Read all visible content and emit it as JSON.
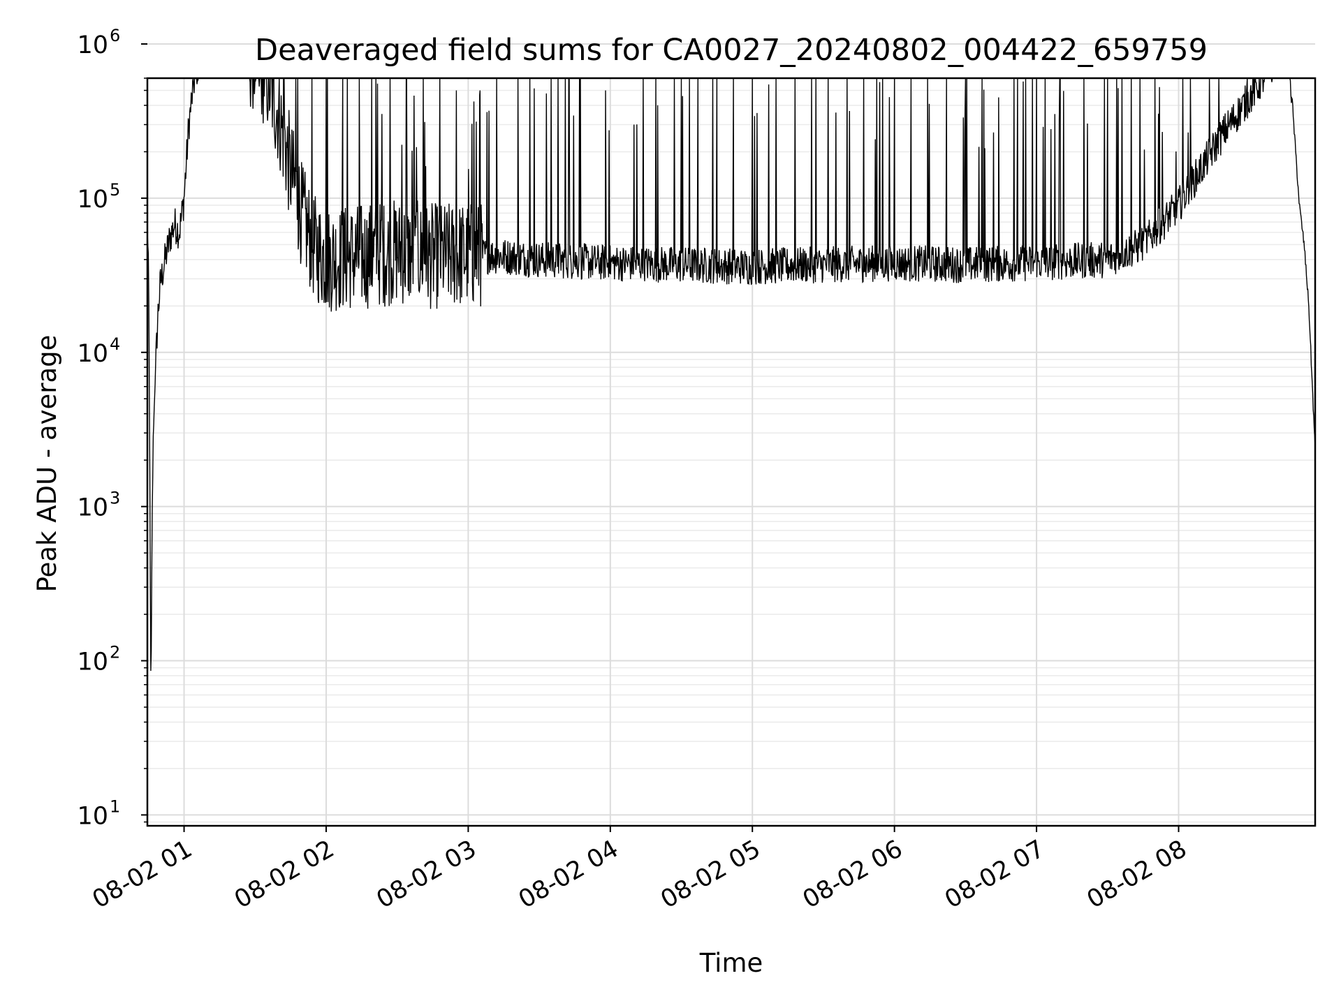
{
  "chart_data": {
    "type": "line",
    "title": "Deaveraged field sums for CA0027_20240802_004422_659759",
    "xlabel": "Time",
    "ylabel": "Peak ADU - average",
    "y_scale": "log",
    "ylim": [
      8.5,
      600000
    ],
    "xlim": [
      "2024-08-02 00:44:30",
      "2024-08-02 08:57:40"
    ],
    "grid": true,
    "legend": "none",
    "x_ticks": [
      {
        "value": "2024-08-02 01:00",
        "label": "08-02 01"
      },
      {
        "value": "2024-08-02 02:00",
        "label": "08-02 02"
      },
      {
        "value": "2024-08-02 03:00",
        "label": "08-02 03"
      },
      {
        "value": "2024-08-02 04:00",
        "label": "08-02 04"
      },
      {
        "value": "2024-08-02 05:00",
        "label": "08-02 05"
      },
      {
        "value": "2024-08-02 06:00",
        "label": "08-02 06"
      },
      {
        "value": "2024-08-02 07:00",
        "label": "08-02 07"
      },
      {
        "value": "2024-08-02 08:00",
        "label": "08-02 08"
      }
    ],
    "y_ticks": [
      {
        "value": 10,
        "base": "10",
        "exp": "1"
      },
      {
        "value": 100,
        "base": "10",
        "exp": "2"
      },
      {
        "value": 1000,
        "base": "10",
        "exp": "3"
      },
      {
        "value": 10000,
        "base": "10",
        "exp": "4"
      },
      {
        "value": 100000,
        "base": "10",
        "exp": "5"
      },
      {
        "value": 1000000,
        "base": "10",
        "exp": "6"
      }
    ],
    "series": [
      {
        "color": "#000000",
        "points": [
          [
            "2024-08-02 00:44:30",
            60000
          ],
          [
            "2024-08-02 00:45:00",
            40000
          ],
          [
            "2024-08-02 00:45:30",
            2000
          ],
          [
            "2024-08-02 00:46:00",
            52
          ],
          [
            "2024-08-02 00:46:30",
            800
          ],
          [
            "2024-08-02 00:47:00",
            3000
          ],
          [
            "2024-08-02 00:48:00",
            8000
          ],
          [
            "2024-08-02 00:49:00",
            18000
          ],
          [
            "2024-08-02 00:50:00",
            28000
          ],
          [
            "2024-08-02 00:52:00",
            40000
          ],
          [
            "2024-08-02 00:54:00",
            55000
          ],
          [
            "2024-08-02 00:56:00",
            68000
          ],
          [
            "2024-08-02 00:58:00",
            60000
          ],
          [
            "2024-08-02 01:00:00",
            100000
          ],
          [
            "2024-08-02 01:02:00",
            300000
          ],
          [
            "2024-08-02 01:04:00",
            550000
          ],
          [
            "2024-08-02 01:06:00",
            750000
          ],
          [
            "2024-08-02 01:10:00",
            850000
          ],
          [
            "2024-08-02 01:15:00",
            800000
          ],
          [
            "2024-08-02 01:20:00",
            900000
          ],
          [
            "2024-08-02 01:25:00",
            850000
          ],
          [
            "2024-08-02 01:30:00",
            800000
          ],
          [
            "2024-08-02 01:35:00",
            600000
          ],
          [
            "2024-08-02 01:40:00",
            350000
          ],
          [
            "2024-08-02 01:45:00",
            150000
          ],
          [
            "2024-08-02 01:50:00",
            75000
          ],
          [
            "2024-08-02 01:55:00",
            48000
          ],
          [
            "2024-08-02 02:00:00",
            40000
          ],
          [
            "2024-08-02 02:15:00",
            42000
          ],
          [
            "2024-08-02 02:30:00",
            45000
          ],
          [
            "2024-08-02 02:45:00",
            42000
          ],
          [
            "2024-08-02 03:00:00",
            43000
          ],
          [
            "2024-08-02 03:15:00",
            42000
          ],
          [
            "2024-08-02 03:30:00",
            40000
          ],
          [
            "2024-08-02 04:00:00",
            38000
          ],
          [
            "2024-08-02 04:30:00",
            37000
          ],
          [
            "2024-08-02 05:00:00",
            36000
          ],
          [
            "2024-08-02 05:30:00",
            37000
          ],
          [
            "2024-08-02 06:00:00",
            38000
          ],
          [
            "2024-08-02 06:30:00",
            37000
          ],
          [
            "2024-08-02 07:00:00",
            38000
          ],
          [
            "2024-08-02 07:30:00",
            40000
          ],
          [
            "2024-08-02 07:45:00",
            50000
          ],
          [
            "2024-08-02 08:00:00",
            90000
          ],
          [
            "2024-08-02 08:10:00",
            160000
          ],
          [
            "2024-08-02 08:20:00",
            280000
          ],
          [
            "2024-08-02 08:30:00",
            450000
          ],
          [
            "2024-08-02 08:40:00",
            750000
          ],
          [
            "2024-08-02 08:45:00",
            1000000
          ],
          [
            "2024-08-02 08:47:00",
            700000
          ],
          [
            "2024-08-02 08:49:00",
            250000
          ],
          [
            "2024-08-02 08:51:00",
            90000
          ],
          [
            "2024-08-02 08:53:00",
            50000
          ],
          [
            "2024-08-02 08:55:00",
            20000
          ],
          [
            "2024-08-02 08:57:40",
            2300
          ]
        ],
        "spikes": [
          [
            "2024-08-02 01:10:00",
            1700000
          ],
          [
            "2024-08-02 01:23:00",
            2200000
          ],
          [
            "2024-08-02 01:26:00",
            1500000
          ],
          [
            "2024-08-02 01:30:00",
            1900000
          ],
          [
            "2024-08-02 01:33:00",
            1800000
          ],
          [
            "2024-08-02 01:37:00",
            1600000
          ],
          [
            "2024-08-02 01:42:00",
            1400000
          ],
          [
            "2024-08-02 01:48:00",
            1300000
          ],
          [
            "2024-08-02 01:54:00",
            1300000
          ],
          [
            "2024-08-02 02:00:00",
            1200000
          ],
          [
            "2024-08-02 02:07:00",
            1000000
          ],
          [
            "2024-08-02 02:14:00",
            900000
          ],
          [
            "2024-08-02 02:21:00",
            2200000
          ],
          [
            "2024-08-02 02:27:00",
            1200000
          ],
          [
            "2024-08-02 02:34:00",
            800000
          ],
          [
            "2024-08-02 02:41:00",
            700000
          ],
          [
            "2024-08-02 02:48:00",
            600000
          ],
          [
            "2024-08-02 02:55:00",
            500000
          ],
          [
            "2024-08-02 03:05:00",
            500000
          ],
          [
            "2024-08-02 03:12:00",
            600000
          ],
          [
            "2024-08-02 03:21:00",
            2300000
          ],
          [
            "2024-08-02 03:35:00",
            700000
          ],
          [
            "2024-08-02 03:47:00",
            1200000
          ],
          [
            "2024-08-02 03:58:00",
            500000
          ],
          [
            "2024-08-02 04:10:00",
            300000
          ],
          [
            "2024-08-02 04:20:00",
            400000
          ],
          [
            "2024-08-02 04:30:00",
            1200000
          ],
          [
            "2024-08-02 04:37:00",
            1300000
          ],
          [
            "2024-08-02 04:45:00",
            1200000
          ],
          [
            "2024-08-02 04:52:00",
            1200000
          ],
          [
            "2024-08-02 05:00:00",
            1200000
          ],
          [
            "2024-08-02 05:10:00",
            1200000
          ],
          [
            "2024-08-02 05:18:00",
            1200000
          ],
          [
            "2024-08-02 05:25:00",
            1300000
          ],
          [
            "2024-08-02 05:32:00",
            1200000
          ],
          [
            "2024-08-02 05:40:00",
            1300000
          ],
          [
            "2024-08-02 05:47:00",
            1400000
          ],
          [
            "2024-08-02 05:55:00",
            1300000
          ],
          [
            "2024-08-02 06:00:00",
            1300000
          ],
          [
            "2024-08-02 06:07:00",
            1300000
          ],
          [
            "2024-08-02 06:14:00",
            1200000
          ],
          [
            "2024-08-02 06:22:00",
            1300000
          ],
          [
            "2024-08-02 06:30:00",
            1300000
          ],
          [
            "2024-08-02 06:37:00",
            1300000
          ],
          [
            "2024-08-02 06:44:00",
            1300000
          ],
          [
            "2024-08-02 06:52:00",
            1200000
          ],
          [
            "2024-08-02 07:00:00",
            1200000
          ],
          [
            "2024-08-02 07:10:00",
            1300000
          ],
          [
            "2024-08-02 07:20:00",
            1300000
          ],
          [
            "2024-08-02 07:30:00",
            1400000
          ],
          [
            "2024-08-02 07:40:00",
            1500000
          ],
          [
            "2024-08-02 07:50:00",
            1500000
          ],
          [
            "2024-08-02 08:05:00",
            1900000
          ],
          [
            "2024-08-02 08:13:00",
            1900000
          ],
          [
            "2024-08-02 08:17:00",
            1800000
          ],
          [
            "2024-08-02 08:29:00",
            900000
          ],
          [
            "2024-08-02 08:38:00",
            1500000
          ],
          [
            "2024-08-02 08:43:00",
            1800000
          ],
          [
            "2024-08-02 08:45:00",
            3200000
          ]
        ]
      }
    ]
  }
}
